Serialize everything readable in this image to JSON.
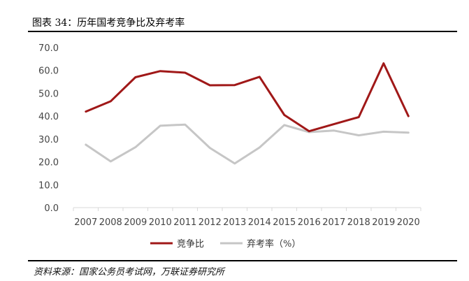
{
  "header": {
    "title": "图表 34：历年国考竞争比及弃考率"
  },
  "footer": {
    "source": "资料来源：国家公务员考试网，万联证券研究所"
  },
  "colors": {
    "series1": "#a01818",
    "series2": "#c6c6c6",
    "axis": "#d9d9d9"
  },
  "chart_data": {
    "type": "line",
    "x": [
      "2007",
      "2008",
      "2009",
      "2010",
      "2011",
      "2012",
      "2013",
      "2014",
      "2015",
      "2016",
      "2017",
      "2018",
      "2019",
      "2020"
    ],
    "y_ticks": [
      "0.0",
      "10.0",
      "20.0",
      "30.0",
      "40.0",
      "50.0",
      "60.0",
      "70.0"
    ],
    "ylim": [
      0,
      70
    ],
    "grid": false,
    "legend_position": "bottom",
    "series": [
      {
        "name": "竞争比",
        "values": [
          42.0,
          46.5,
          57.0,
          59.7,
          59.0,
          53.5,
          53.6,
          57.2,
          40.5,
          33.4,
          36.5,
          39.6,
          63.1,
          40.0
        ]
      },
      {
        "name": "弃考率（%）",
        "values": [
          27.5,
          20.2,
          26.4,
          35.8,
          36.3,
          26.1,
          19.3,
          26.3,
          36.1,
          33.0,
          33.7,
          31.6,
          33.2,
          32.8
        ]
      }
    ]
  }
}
